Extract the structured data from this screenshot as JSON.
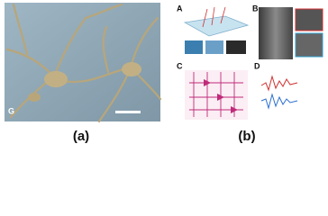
{
  "captions": [
    "(a)",
    "(b)"
  ],
  "panel_letters": {
    "a": "G",
    "b": [
      "A",
      "B",
      "C",
      "D"
    ]
  }
}
